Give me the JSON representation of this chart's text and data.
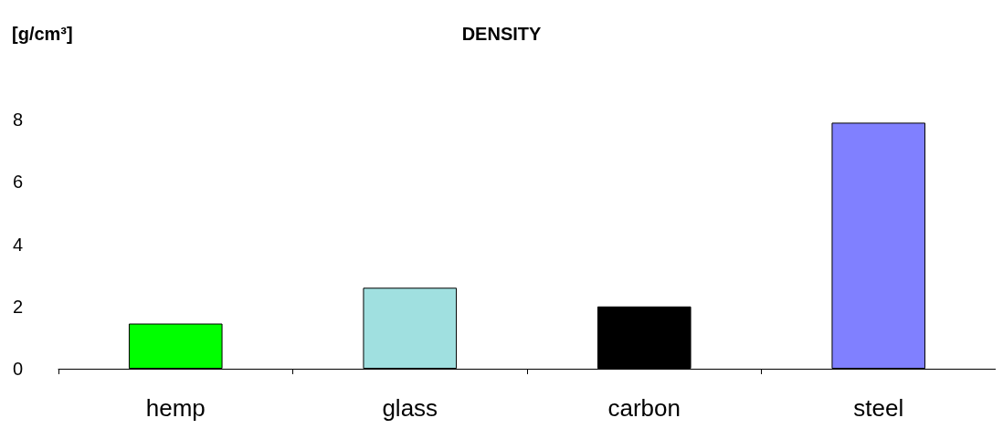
{
  "chart_data": {
    "type": "bar",
    "title": "DENSITY",
    "ylabel": "[g/cm³]",
    "categories": [
      "hemp",
      "glass",
      "carbon",
      "steel"
    ],
    "values": [
      1.45,
      2.6,
      2.0,
      7.9
    ],
    "colors": [
      "#00ff00",
      "#a0e0e0",
      "#000000",
      "#8080ff"
    ],
    "ylim": [
      0,
      8
    ],
    "yticks": [
      0,
      2,
      4,
      6,
      8
    ],
    "grid": false
  }
}
